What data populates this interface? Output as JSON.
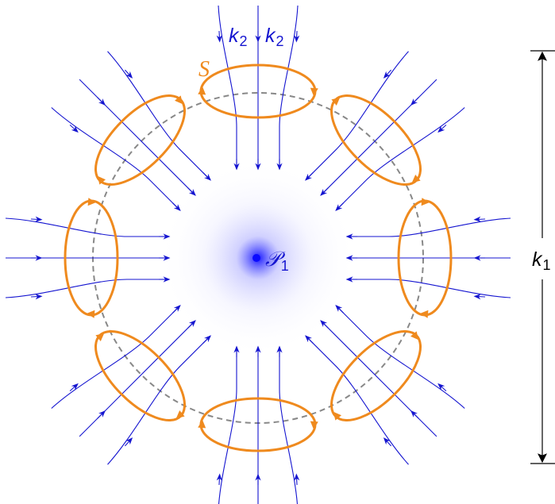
{
  "labels": {
    "surface": "S",
    "k2_left": "k",
    "k2_left_sub": "2",
    "k2_right": "k",
    "k2_right_sub": "2",
    "point": "𝒫",
    "point_sub": "1",
    "dimension": "k",
    "dimension_sub": "1"
  },
  "colors": {
    "field_line": "#1515d0",
    "surface_loop": "#ef8a1e",
    "dashed_circle": "#888888",
    "glow": "#2a2aff",
    "dimension_arrow": "#000000",
    "label_surface": "#ef8a1e",
    "label_k2": "#1515d0",
    "label_point": "#1515d0",
    "label_k1": "#000000"
  },
  "structure": {
    "loop_count": 8,
    "lines_per_loop": 3,
    "field_direction": "inward"
  }
}
